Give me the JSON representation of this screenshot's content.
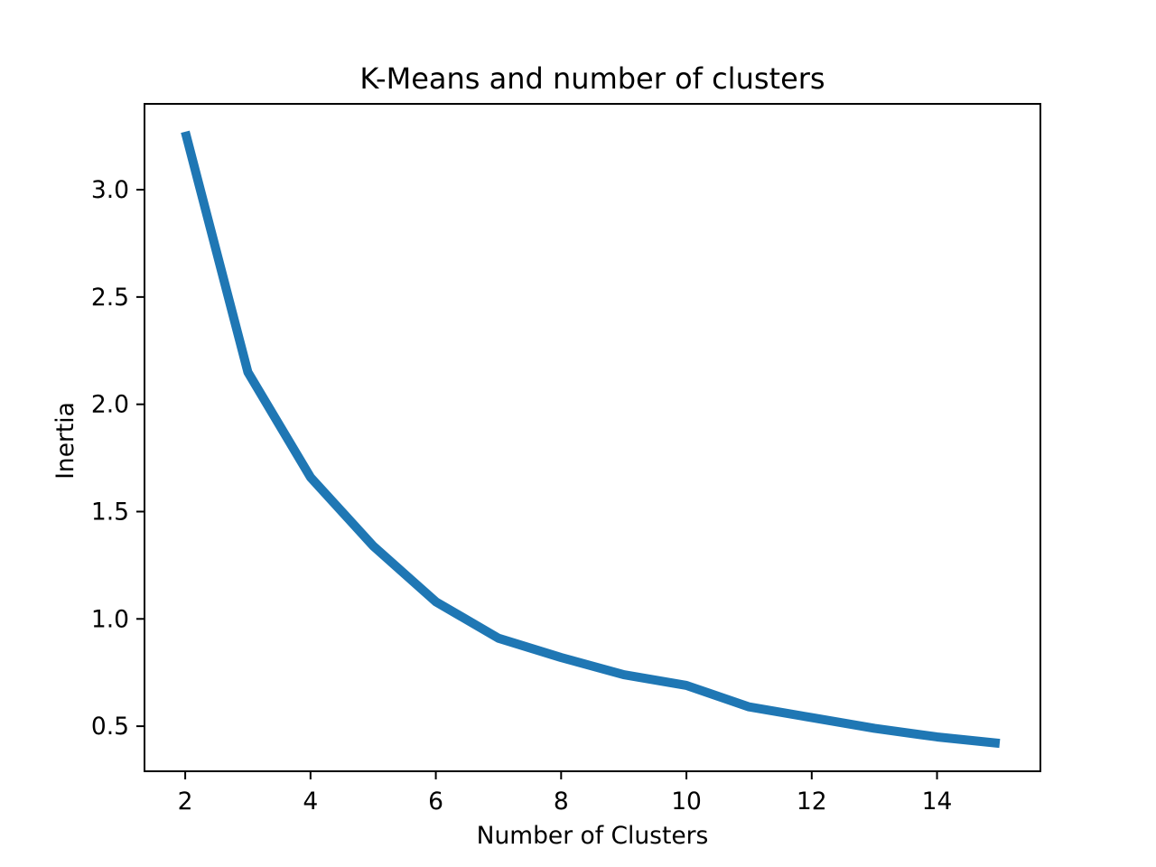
{
  "chart_data": {
    "type": "line",
    "title": "K-Means and number of clusters",
    "xlabel": "Number of Clusters",
    "ylabel": "Inertia",
    "xlim": [
      1.35,
      15.65
    ],
    "ylim": [
      0.29,
      3.4
    ],
    "x_ticks": [
      {
        "value": 2,
        "label": "2"
      },
      {
        "value": 4,
        "label": "4"
      },
      {
        "value": 6,
        "label": "6"
      },
      {
        "value": 8,
        "label": "8"
      },
      {
        "value": 10,
        "label": "10"
      },
      {
        "value": 12,
        "label": "12"
      },
      {
        "value": 14,
        "label": "14"
      }
    ],
    "y_ticks": [
      {
        "value": 0.5,
        "label": "0.5"
      },
      {
        "value": 1.0,
        "label": "1.0"
      },
      {
        "value": 1.5,
        "label": "1.5"
      },
      {
        "value": 2.0,
        "label": "2.0"
      },
      {
        "value": 2.5,
        "label": "2.5"
      },
      {
        "value": 3.0,
        "label": "3.0"
      }
    ],
    "grid": false,
    "series": [
      {
        "color": "#1f77b4",
        "x": [
          2,
          3,
          4,
          5,
          6,
          7,
          8,
          9,
          10,
          11,
          12,
          13,
          14,
          15
        ],
        "y": [
          3.27,
          2.15,
          1.66,
          1.34,
          1.08,
          0.91,
          0.82,
          0.74,
          0.69,
          0.59,
          0.54,
          0.49,
          0.45,
          0.42
        ]
      }
    ]
  }
}
